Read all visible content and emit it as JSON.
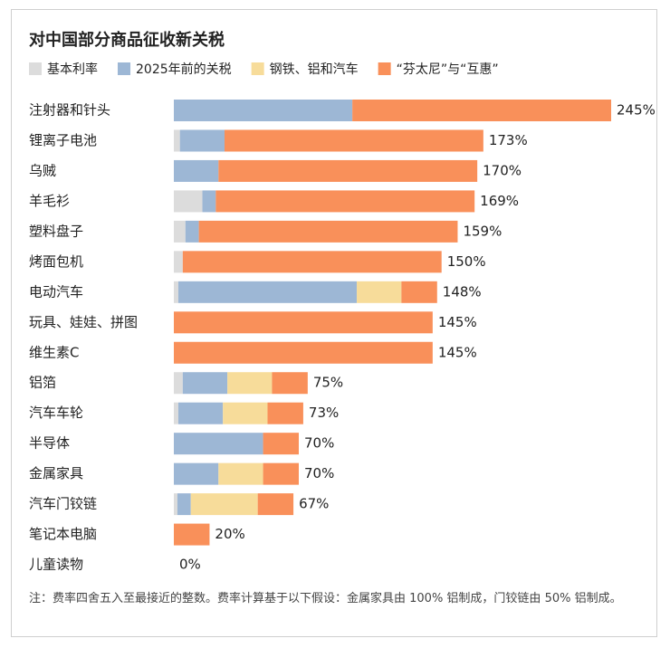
{
  "chart_data": {
    "type": "stacked-bar",
    "title": "对中国部分商品征收新关税",
    "categories": [
      "注射器和针头",
      "锂离子电池",
      "乌贼",
      "羊毛衫",
      "塑料盘子",
      "烤面包机",
      "电动汽车",
      "玩具、娃娃、拼图",
      "维生素C",
      "铝箔",
      "汽车车轮",
      "半导体",
      "金属家具",
      "汽车门铰链",
      "笔记本电脑",
      "儿童读物"
    ],
    "series": [
      {
        "name": "基本利率",
        "color": "#dcdcdc",
        "values": [
          0,
          3.4,
          0,
          16,
          6.5,
          5,
          2.5,
          0,
          0,
          5,
          2.5,
          0,
          0,
          2,
          0,
          0
        ]
      },
      {
        "name": "2025年前的关税",
        "color": "#9db7d5",
        "values": [
          100,
          25,
          25,
          7.5,
          7.5,
          0,
          100,
          0,
          0,
          25,
          25,
          50,
          25,
          7.5,
          0,
          0
        ]
      },
      {
        "name": "钢铁、铝和汽车",
        "color": "#f7dc9a",
        "values": [
          0,
          0,
          0,
          0,
          0,
          0,
          25,
          0,
          0,
          25,
          25,
          0,
          25,
          37.5,
          0,
          0
        ]
      },
      {
        "name": "“芬太尼”与“互惠”",
        "color": "#f9905a",
        "values": [
          145,
          145,
          145,
          145,
          145,
          145,
          20,
          145,
          145,
          20,
          20,
          20,
          20,
          20,
          20,
          0
        ]
      }
    ],
    "totals": [
      245,
      173,
      170,
      169,
      159,
      150,
      148,
      145,
      145,
      75,
      73,
      70,
      70,
      67,
      20,
      0
    ],
    "total_labels": [
      "245%",
      "173%",
      "170%",
      "169%",
      "159%",
      "150%",
      "148%",
      "145%",
      "145%",
      "75%",
      "73%",
      "70%",
      "70%",
      "67%",
      "20%",
      "0%"
    ],
    "note": "注：费率四舍五入至最接近的整数。费率计算基于以下假设：金属家具由 100% 铝制成，门铰链由 50% 铝制成。"
  }
}
